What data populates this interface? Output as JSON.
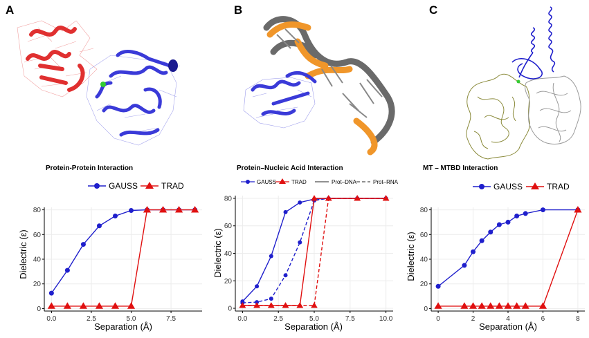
{
  "panels": [
    {
      "letter": "A",
      "molecule": "protein-protein complex"
    },
    {
      "letter": "B",
      "molecule": "protein-nucleic acid complex"
    },
    {
      "letter": "C",
      "molecule": "microtubule-MTBD complex"
    }
  ],
  "colors": {
    "gauss": "#1f1fcc",
    "trad": "#e01010",
    "protein_red": "#e03030",
    "protein_blue": "#3a3ad8",
    "dna_gray": "#6a6a6a",
    "dna_orange": "#f0962a",
    "olive": "#8a8a3a",
    "gray": "#9a9a9a",
    "ion_green": "#33cc33"
  },
  "chart_data": [
    {
      "type": "line",
      "title": "Protein-Protein Interaction",
      "xlabel": "Separation (Å)",
      "ylabel": "Dielectric (ε)",
      "xlim": [
        -0.45,
        9.45
      ],
      "ylim": [
        -2,
        82
      ],
      "xticks": [
        0.0,
        2.5,
        5.0,
        7.5
      ],
      "xtick_labels": [
        "0.0",
        "2.5",
        "5.0",
        "7.5"
      ],
      "yticks": [
        0,
        20,
        40,
        60,
        80
      ],
      "legend": [
        "GAUSS",
        "TRAD"
      ],
      "legend_position": "top",
      "series": [
        {
          "name": "GAUSS",
          "marker": "circle",
          "x": [
            0,
            1,
            2,
            3,
            4,
            5,
            6,
            7,
            8,
            9
          ],
          "y": [
            12.5,
            31,
            52,
            67,
            75,
            79.5,
            80,
            80,
            80,
            80
          ]
        },
        {
          "name": "TRAD",
          "marker": "triangle",
          "x": [
            0,
            1,
            2,
            3,
            4,
            5,
            6,
            7,
            8,
            9
          ],
          "y": [
            2,
            2,
            2,
            2,
            2,
            2,
            80,
            80,
            80,
            80
          ]
        }
      ]
    },
    {
      "type": "line",
      "title": "Protein–Nucleic Acid Interaction",
      "xlabel": "Separation (Å)",
      "ylabel": "Dielectric (ε)",
      "xlim": [
        -0.5,
        10.5
      ],
      "ylim": [
        -2,
        82
      ],
      "xticks": [
        0.0,
        2.5,
        5.0,
        7.5,
        10.0
      ],
      "xtick_labels": [
        "0.0",
        "2.5",
        "5.0",
        "7.5",
        "10.0"
      ],
      "yticks": [
        0,
        20,
        40,
        60,
        80
      ],
      "legend": [
        "GAUSS",
        "TRAD",
        "Prot–DNA",
        "Prot–RNA"
      ],
      "legend_position": "top",
      "series": [
        {
          "name": "GAUSS",
          "line": "Prot–DNA",
          "marker": "circle",
          "x": [
            0,
            1,
            2,
            3,
            4,
            5,
            6,
            8,
            10
          ],
          "y": [
            5,
            16,
            38,
            70,
            77,
            79.5,
            80,
            80,
            80
          ]
        },
        {
          "name": "GAUSS",
          "line": "Prot–RNA",
          "marker": "circle",
          "x": [
            0,
            1,
            2,
            3,
            4,
            5,
            6,
            8,
            10
          ],
          "y": [
            4,
            4.5,
            7,
            24,
            48,
            78.5,
            80,
            80,
            80
          ]
        },
        {
          "name": "TRAD",
          "line": "Prot–DNA",
          "marker": "triangle",
          "x": [
            0,
            1,
            2,
            3,
            4,
            5,
            6,
            8,
            10
          ],
          "y": [
            2,
            2,
            2,
            2,
            2,
            80,
            80,
            80,
            80
          ]
        },
        {
          "name": "TRAD",
          "line": "Prot–RNA",
          "marker": "triangle",
          "x": [
            0,
            1,
            2,
            3,
            4,
            5,
            6,
            8,
            10
          ],
          "y": [
            2,
            2,
            2,
            2,
            2,
            2,
            80,
            80,
            80
          ]
        }
      ]
    },
    {
      "type": "line",
      "title": "MT – MTBD Interaction",
      "xlabel": "Separation (Å)",
      "ylabel": "Dielectric (ε)",
      "xlim": [
        -0.4,
        8.4
      ],
      "ylim": [
        -2,
        82
      ],
      "xticks": [
        0,
        2,
        4,
        6,
        8
      ],
      "xtick_labels": [
        "0",
        "2",
        "4",
        "6",
        "8"
      ],
      "yticks": [
        0,
        20,
        40,
        60,
        80
      ],
      "legend": [
        "GAUSS",
        "TRAD"
      ],
      "legend_position": "top",
      "series": [
        {
          "name": "GAUSS",
          "marker": "circle",
          "x": [
            0,
            1.5,
            2,
            2.5,
            3,
            3.5,
            4,
            4.5,
            5,
            6,
            8
          ],
          "y": [
            18,
            35,
            46,
            55,
            62,
            68,
            70,
            75,
            77,
            80,
            80
          ]
        },
        {
          "name": "TRAD",
          "marker": "triangle",
          "x": [
            0,
            1.5,
            2,
            2.5,
            3,
            3.5,
            4,
            4.5,
            5,
            6,
            8
          ],
          "y": [
            2,
            2,
            2,
            2,
            2,
            2,
            2,
            2,
            2,
            2,
            80
          ]
        }
      ]
    }
  ]
}
